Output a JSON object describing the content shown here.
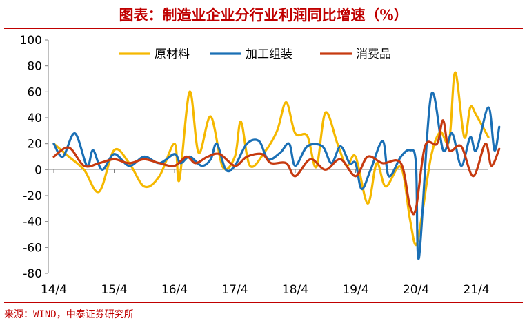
{
  "header": {
    "title": "图表：制造业企业分行业利润同比增速（%）"
  },
  "footer": {
    "source": "来源：WIND，中泰证券研究所"
  },
  "colors": {
    "accent": "#c00000",
    "raw_materials": "#f5b800",
    "processing": "#1a6fb5",
    "consumer": "#c63a10"
  },
  "chart_data": {
    "type": "line",
    "title": "图表：制造业企业分行业利润同比增速（%）",
    "xlabel": "",
    "ylabel": "",
    "ylim": [
      -80,
      100
    ],
    "yticks": [
      "100",
      "80",
      "60",
      "40",
      "20",
      "0",
      "-20",
      "-40",
      "-60",
      "-80"
    ],
    "xticks": [
      "14/4",
      "15/4",
      "16/4",
      "17/4",
      "18/4",
      "19/4",
      "20/4",
      "21/4"
    ],
    "grid": false,
    "legend": "top-center",
    "series": [
      {
        "name": "原材料",
        "color": "#f5b800",
        "values": [
          {
            "x": 0.0,
            "y": 20
          },
          {
            "x": 0.25,
            "y": 10
          },
          {
            "x": 0.5,
            "y": 0
          },
          {
            "x": 0.75,
            "y": -17
          },
          {
            "x": 1.0,
            "y": 15
          },
          {
            "x": 1.25,
            "y": 5
          },
          {
            "x": 1.5,
            "y": -13
          },
          {
            "x": 1.75,
            "y": -5
          },
          {
            "x": 2.0,
            "y": 20
          },
          {
            "x": 2.08,
            "y": -8
          },
          {
            "x": 2.25,
            "y": 60
          },
          {
            "x": 2.4,
            "y": 13
          },
          {
            "x": 2.6,
            "y": 41
          },
          {
            "x": 2.8,
            "y": 2
          },
          {
            "x": 3.0,
            "y": 10
          },
          {
            "x": 3.1,
            "y": 37
          },
          {
            "x": 3.25,
            "y": 3
          },
          {
            "x": 3.5,
            "y": 14
          },
          {
            "x": 3.7,
            "y": 30
          },
          {
            "x": 3.85,
            "y": 52
          },
          {
            "x": 4.0,
            "y": 28
          },
          {
            "x": 4.2,
            "y": 26
          },
          {
            "x": 4.35,
            "y": 2
          },
          {
            "x": 4.5,
            "y": 44
          },
          {
            "x": 4.7,
            "y": 20
          },
          {
            "x": 4.85,
            "y": 3
          },
          {
            "x": 5.0,
            "y": 10
          },
          {
            "x": 5.2,
            "y": -26
          },
          {
            "x": 5.35,
            "y": 5
          },
          {
            "x": 5.5,
            "y": -13
          },
          {
            "x": 5.75,
            "y": 2
          },
          {
            "x": 5.9,
            "y": -38
          },
          {
            "x": 6.0,
            "y": -58
          },
          {
            "x": 6.1,
            "y": -35
          },
          {
            "x": 6.25,
            "y": 10
          },
          {
            "x": 6.4,
            "y": 29
          },
          {
            "x": 6.55,
            "y": 22
          },
          {
            "x": 6.65,
            "y": 75
          },
          {
            "x": 6.8,
            "y": 25
          },
          {
            "x": 6.9,
            "y": 48
          },
          {
            "x": 7.0,
            "y": 42
          },
          {
            "x": 7.2,
            "y": 25
          }
        ]
      },
      {
        "name": "加工组装",
        "color": "#1a6fb5",
        "values": [
          {
            "x": 0.0,
            "y": 20
          },
          {
            "x": 0.15,
            "y": 10
          },
          {
            "x": 0.35,
            "y": 28
          },
          {
            "x": 0.55,
            "y": 3
          },
          {
            "x": 0.65,
            "y": 15
          },
          {
            "x": 0.8,
            "y": 0
          },
          {
            "x": 1.0,
            "y": 12
          },
          {
            "x": 1.25,
            "y": 3
          },
          {
            "x": 1.5,
            "y": 10
          },
          {
            "x": 1.75,
            "y": 5
          },
          {
            "x": 2.0,
            "y": 12
          },
          {
            "x": 2.1,
            "y": 5
          },
          {
            "x": 2.25,
            "y": 10
          },
          {
            "x": 2.45,
            "y": 3
          },
          {
            "x": 2.6,
            "y": 8
          },
          {
            "x": 2.7,
            "y": 20
          },
          {
            "x": 2.85,
            "y": 0
          },
          {
            "x": 3.0,
            "y": 3
          },
          {
            "x": 3.2,
            "y": 20
          },
          {
            "x": 3.4,
            "y": 22
          },
          {
            "x": 3.55,
            "y": 8
          },
          {
            "x": 3.75,
            "y": 13
          },
          {
            "x": 3.9,
            "y": 20
          },
          {
            "x": 4.0,
            "y": 3
          },
          {
            "x": 4.2,
            "y": 18
          },
          {
            "x": 4.45,
            "y": 18
          },
          {
            "x": 4.6,
            "y": 5
          },
          {
            "x": 4.75,
            "y": 18
          },
          {
            "x": 4.9,
            "y": 5
          },
          {
            "x": 5.0,
            "y": 5
          },
          {
            "x": 5.1,
            "y": -15
          },
          {
            "x": 5.25,
            "y": 0
          },
          {
            "x": 5.45,
            "y": 22
          },
          {
            "x": 5.55,
            "y": -5
          },
          {
            "x": 5.75,
            "y": 10
          },
          {
            "x": 5.9,
            "y": 15
          },
          {
            "x": 6.0,
            "y": 5
          },
          {
            "x": 6.05,
            "y": -68
          },
          {
            "x": 6.25,
            "y": 57
          },
          {
            "x": 6.45,
            "y": 15
          },
          {
            "x": 6.6,
            "y": 28
          },
          {
            "x": 6.75,
            "y": 3
          },
          {
            "x": 6.9,
            "y": 25
          },
          {
            "x": 7.0,
            "y": 15
          },
          {
            "x": 7.2,
            "y": 48
          },
          {
            "x": 7.3,
            "y": 15
          },
          {
            "x": 7.38,
            "y": 33
          }
        ]
      },
      {
        "name": "消费品",
        "color": "#c63a10",
        "values": [
          {
            "x": 0.0,
            "y": 10
          },
          {
            "x": 0.25,
            "y": 17
          },
          {
            "x": 0.5,
            "y": 3
          },
          {
            "x": 0.75,
            "y": 5
          },
          {
            "x": 1.0,
            "y": 8
          },
          {
            "x": 1.25,
            "y": 5
          },
          {
            "x": 1.5,
            "y": 8
          },
          {
            "x": 1.75,
            "y": 5
          },
          {
            "x": 2.0,
            "y": 3
          },
          {
            "x": 2.2,
            "y": 10
          },
          {
            "x": 2.35,
            "y": 5
          },
          {
            "x": 2.55,
            "y": 10
          },
          {
            "x": 2.75,
            "y": 12
          },
          {
            "x": 3.0,
            "y": 3
          },
          {
            "x": 3.2,
            "y": 10
          },
          {
            "x": 3.45,
            "y": 12
          },
          {
            "x": 3.6,
            "y": 5
          },
          {
            "x": 3.85,
            "y": 5
          },
          {
            "x": 4.0,
            "y": -5
          },
          {
            "x": 4.25,
            "y": 8
          },
          {
            "x": 4.5,
            "y": 0
          },
          {
            "x": 4.75,
            "y": 8
          },
          {
            "x": 5.0,
            "y": -5
          },
          {
            "x": 5.2,
            "y": 10
          },
          {
            "x": 5.45,
            "y": 5
          },
          {
            "x": 5.75,
            "y": 5
          },
          {
            "x": 5.9,
            "y": -28
          },
          {
            "x": 6.0,
            "y": -30
          },
          {
            "x": 6.15,
            "y": 18
          },
          {
            "x": 6.35,
            "y": 20
          },
          {
            "x": 6.45,
            "y": 38
          },
          {
            "x": 6.55,
            "y": 15
          },
          {
            "x": 6.75,
            "y": 18
          },
          {
            "x": 6.95,
            "y": -5
          },
          {
            "x": 7.15,
            "y": 20
          },
          {
            "x": 7.25,
            "y": 3
          },
          {
            "x": 7.38,
            "y": 16
          }
        ]
      }
    ]
  }
}
